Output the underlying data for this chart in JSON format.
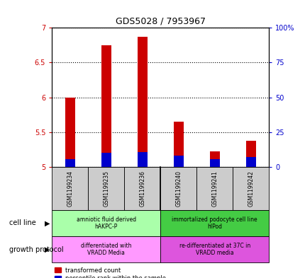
{
  "title": "GDS5028 / 7953967",
  "samples": [
    "GSM1199234",
    "GSM1199235",
    "GSM1199236",
    "GSM1199240",
    "GSM1199241",
    "GSM1199242"
  ],
  "red_values": [
    6.0,
    6.75,
    6.87,
    5.65,
    5.22,
    5.37
  ],
  "blue_values": [
    5.5,
    10.0,
    10.5,
    8.0,
    5.5,
    7.0
  ],
  "ylim_left": [
    5.0,
    7.0
  ],
  "ylim_right": [
    0,
    100
  ],
  "yticks_left": [
    5.0,
    5.5,
    6.0,
    6.5,
    7.0
  ],
  "yticks_right": [
    0,
    25,
    50,
    75,
    100
  ],
  "ytick_labels_left": [
    "5",
    "5.5",
    "6",
    "6.5",
    "7"
  ],
  "ytick_labels_right": [
    "0",
    "25",
    "50",
    "75",
    "100%"
  ],
  "left_color": "#cc0000",
  "right_color": "#0000cc",
  "cell_line_groups": [
    {
      "label": "amniotic fluid derived\nhAKPC-P",
      "start": 0,
      "end": 3,
      "color": "#aaffaa"
    },
    {
      "label": "immortalized podocyte cell line\nhIPod",
      "start": 3,
      "end": 6,
      "color": "#44cc44"
    }
  ],
  "growth_protocol_groups": [
    {
      "label": "differentiated with\nVRADD Media",
      "start": 0,
      "end": 3,
      "color": "#ff99ff"
    },
    {
      "label": "re-differentiated at 37C in\nVRADD media",
      "start": 3,
      "end": 6,
      "color": "#dd55dd"
    }
  ],
  "cell_line_label": "cell line",
  "growth_protocol_label": "growth protocol",
  "legend_red": "transformed count",
  "legend_blue": "percentile rank within the sample",
  "sample_box_color": "#cccccc"
}
